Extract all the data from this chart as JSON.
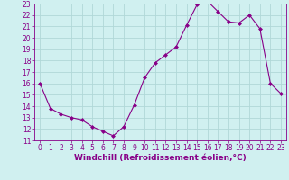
{
  "x": [
    0,
    1,
    2,
    3,
    4,
    5,
    6,
    7,
    8,
    9,
    10,
    11,
    12,
    13,
    14,
    15,
    16,
    17,
    18,
    19,
    20,
    21,
    22,
    23
  ],
  "y": [
    16,
    13.8,
    13.3,
    13.0,
    12.8,
    12.2,
    11.8,
    11.4,
    12.2,
    14.1,
    16.5,
    17.8,
    18.5,
    19.2,
    21.1,
    22.9,
    23.2,
    22.3,
    21.4,
    21.3,
    22.0,
    20.8,
    16.0,
    15.1
  ],
  "line_color": "#880088",
  "marker": "D",
  "marker_size": 2.0,
  "bg_color": "#d0f0f0",
  "grid_color": "#b0d8d8",
  "xlabel": "Windchill (Refroidissement éolien,°C)",
  "ylim": [
    11,
    23
  ],
  "xlim_min": -0.5,
  "xlim_max": 23.5,
  "yticks": [
    11,
    12,
    13,
    14,
    15,
    16,
    17,
    18,
    19,
    20,
    21,
    22,
    23
  ],
  "xticks": [
    0,
    1,
    2,
    3,
    4,
    5,
    6,
    7,
    8,
    9,
    10,
    11,
    12,
    13,
    14,
    15,
    16,
    17,
    18,
    19,
    20,
    21,
    22,
    23
  ],
  "tick_color": "#880088",
  "tick_fontsize": 5.5,
  "xlabel_fontsize": 6.5
}
